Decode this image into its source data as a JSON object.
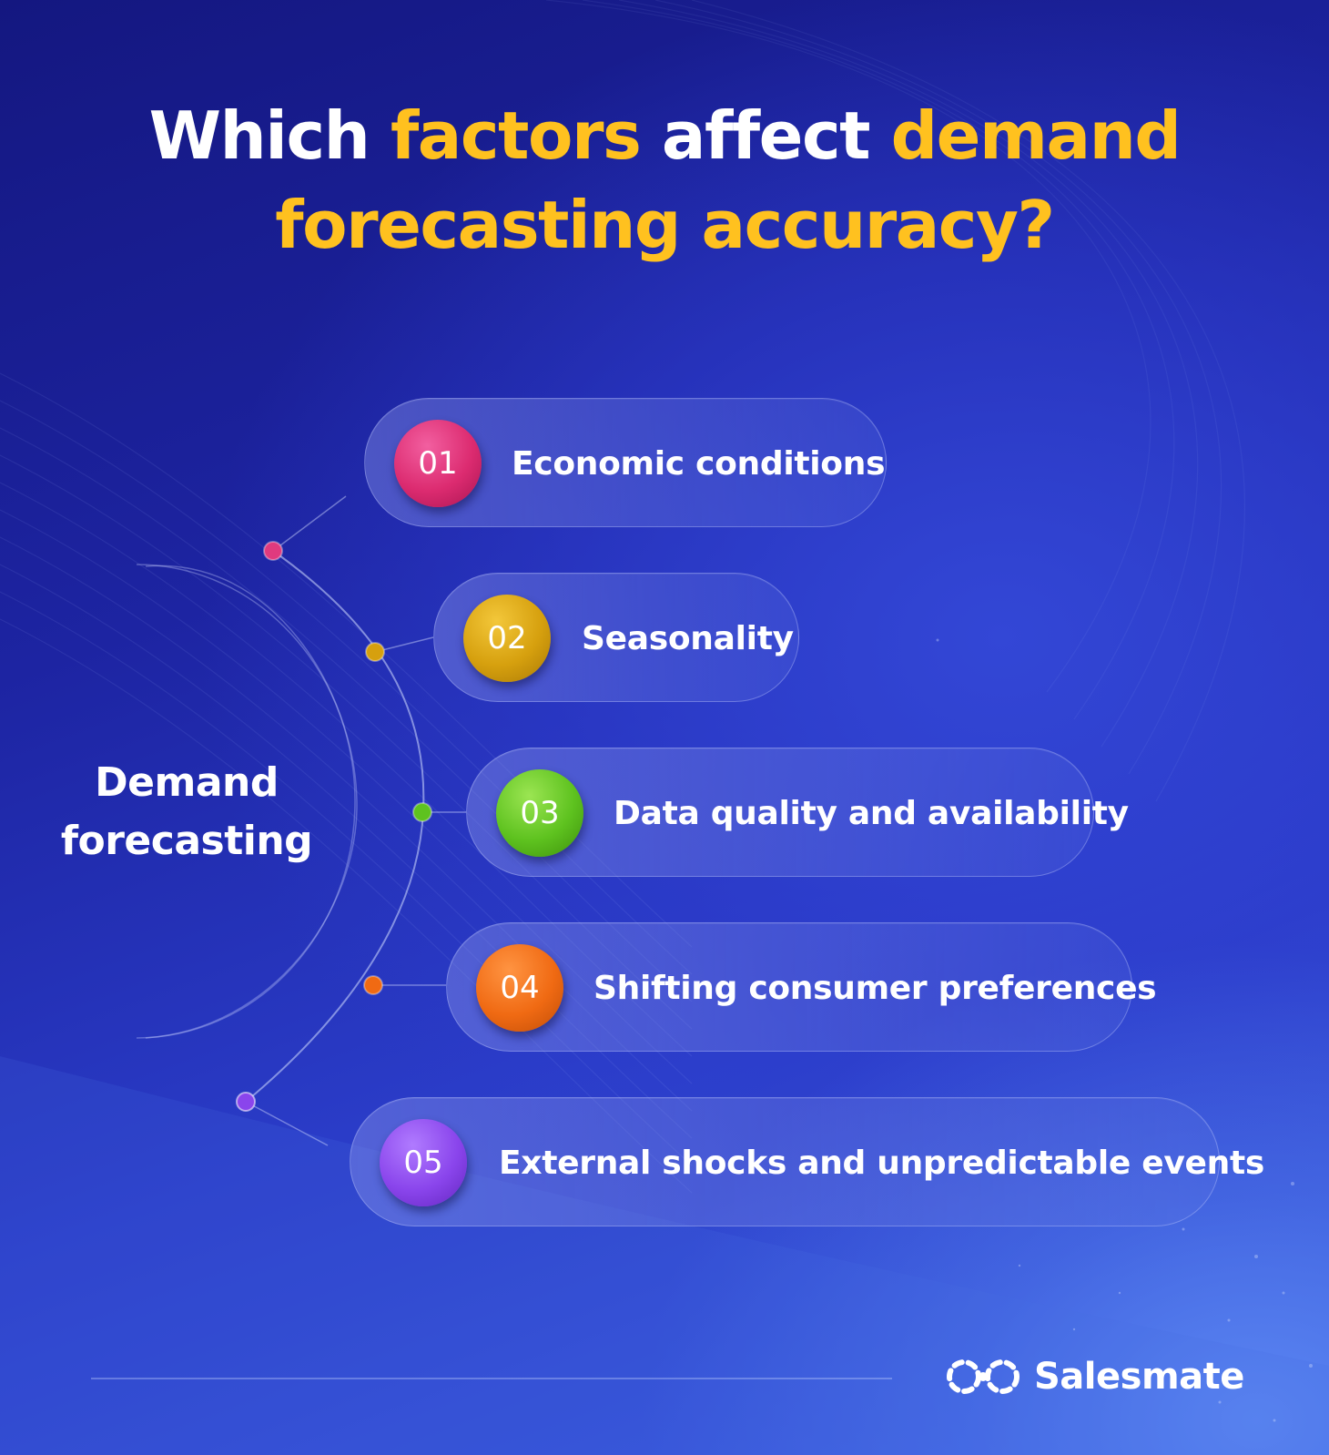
{
  "title": {
    "part1": "Which ",
    "part2": "factors",
    "part3": " affect ",
    "part4": "demand",
    "part5": "forecasting accuracy?"
  },
  "center_label": {
    "line1": "Demand",
    "line2": "forecasting"
  },
  "factors": [
    {
      "number": "01",
      "label": "Economic conditions",
      "color": "#dc2b70"
    },
    {
      "number": "02",
      "label": "Seasonality",
      "color": "#d6a00e"
    },
    {
      "number": "03",
      "label": "Data quality and availability",
      "color": "#5ec21f"
    },
    {
      "number": "04",
      "label": "Shifting consumer preferences",
      "color": "#f06a13"
    },
    {
      "number": "05",
      "label": "External shocks and unpredictable events",
      "color": "#8a45ec"
    }
  ],
  "brand": {
    "name": "Salesmate",
    "logo_icon": "salesmate-logo-icon"
  },
  "colors": {
    "highlight": "#ffc11f",
    "background": "#1d24a2",
    "text": "#ffffff"
  }
}
